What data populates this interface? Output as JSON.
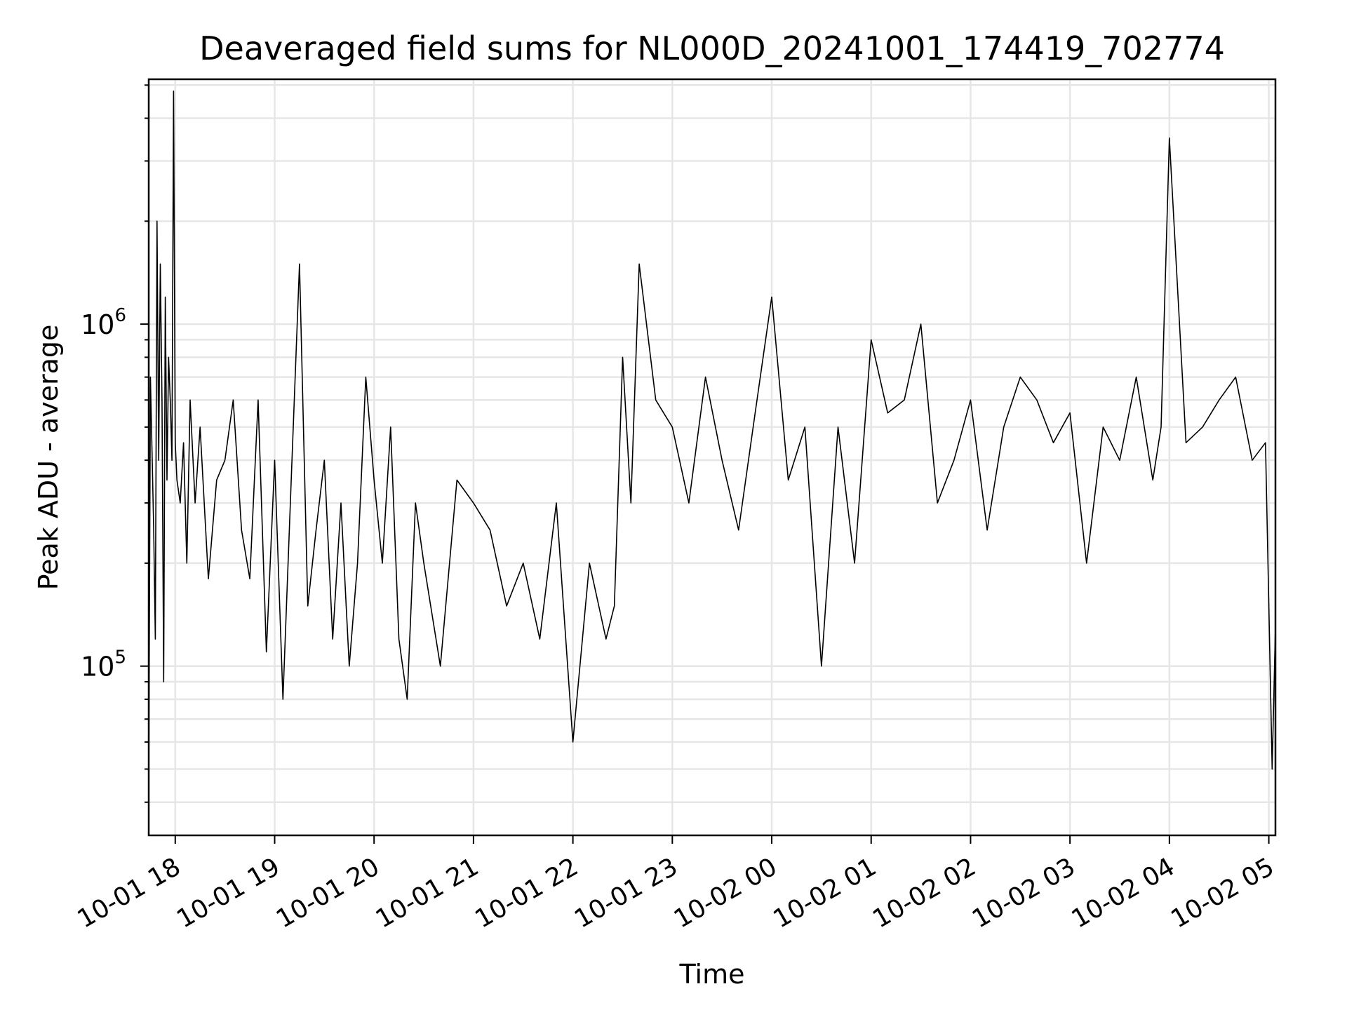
{
  "chart_data": {
    "type": "line",
    "title": "Deaveraged field sums for NL000D_20241001_174419_702774",
    "xlabel": "Time",
    "ylabel": "Peak ADU - average",
    "yscale": "log",
    "ylim": [
      32000,
      5200000
    ],
    "xlim": [
      "2024-10-01 17:44",
      "2024-10-02 05:04"
    ],
    "x_tick_labels": [
      "10-01 18",
      "10-01 19",
      "10-01 20",
      "10-01 21",
      "10-01 22",
      "10-01 23",
      "10-02 00",
      "10-02 01",
      "10-02 02",
      "10-02 03",
      "10-02 04",
      "10-02 05"
    ],
    "y_tick_labels": [
      {
        "base": "10",
        "exp": "6"
      },
      {
        "base": "10",
        "exp": "5"
      }
    ],
    "grid": true,
    "series_color": "#000000",
    "grid_color": "#e6e6e6",
    "series": [
      {
        "x": [
          "2024-10-01 17:44",
          "2024-10-01 17:45",
          "2024-10-01 17:47",
          "2024-10-01 17:48",
          "2024-10-01 17:49",
          "2024-10-01 17:50",
          "2024-10-01 17:51",
          "2024-10-01 17:52",
          "2024-10-01 17:53",
          "2024-10-01 17:54",
          "2024-10-01 17:55",
          "2024-10-01 17:56",
          "2024-10-01 17:57",
          "2024-10-01 17:58",
          "2024-10-01 17:59",
          "2024-10-01 18:00",
          "2024-10-01 18:01",
          "2024-10-01 18:03",
          "2024-10-01 18:05",
          "2024-10-01 18:07",
          "2024-10-01 18:09",
          "2024-10-01 18:12",
          "2024-10-01 18:15",
          "2024-10-01 18:20",
          "2024-10-01 18:25",
          "2024-10-01 18:30",
          "2024-10-01 18:35",
          "2024-10-01 18:40",
          "2024-10-01 18:45",
          "2024-10-01 18:50",
          "2024-10-01 18:55",
          "2024-10-01 19:00",
          "2024-10-01 19:05",
          "2024-10-01 19:10",
          "2024-10-01 19:15",
          "2024-10-01 19:20",
          "2024-10-01 19:25",
          "2024-10-01 19:30",
          "2024-10-01 19:35",
          "2024-10-01 19:40",
          "2024-10-01 19:45",
          "2024-10-01 19:50",
          "2024-10-01 19:55",
          "2024-10-01 20:00",
          "2024-10-01 20:05",
          "2024-10-01 20:10",
          "2024-10-01 20:15",
          "2024-10-01 20:20",
          "2024-10-01 20:25",
          "2024-10-01 20:30",
          "2024-10-01 20:40",
          "2024-10-01 20:50",
          "2024-10-01 21:00",
          "2024-10-01 21:10",
          "2024-10-01 21:20",
          "2024-10-01 21:30",
          "2024-10-01 21:40",
          "2024-10-01 21:50",
          "2024-10-01 22:00",
          "2024-10-01 22:10",
          "2024-10-01 22:20",
          "2024-10-01 22:25",
          "2024-10-01 22:30",
          "2024-10-01 22:35",
          "2024-10-01 22:40",
          "2024-10-01 22:50",
          "2024-10-01 23:00",
          "2024-10-01 23:10",
          "2024-10-01 23:20",
          "2024-10-01 23:30",
          "2024-10-01 23:40",
          "2024-10-01 23:50",
          "2024-10-02 00:00",
          "2024-10-02 00:10",
          "2024-10-02 00:20",
          "2024-10-02 00:30",
          "2024-10-02 00:40",
          "2024-10-02 00:50",
          "2024-10-02 01:00",
          "2024-10-02 01:10",
          "2024-10-02 01:20",
          "2024-10-02 01:30",
          "2024-10-02 01:40",
          "2024-10-02 01:50",
          "2024-10-02 02:00",
          "2024-10-02 02:10",
          "2024-10-02 02:20",
          "2024-10-02 02:30",
          "2024-10-02 02:40",
          "2024-10-02 02:50",
          "2024-10-02 03:00",
          "2024-10-02 03:10",
          "2024-10-02 03:20",
          "2024-10-02 03:30",
          "2024-10-02 03:40",
          "2024-10-02 03:50",
          "2024-10-02 03:55",
          "2024-10-02 04:00",
          "2024-10-02 04:10",
          "2024-10-02 04:20",
          "2024-10-02 04:30",
          "2024-10-02 04:40",
          "2024-10-02 04:50",
          "2024-10-02 04:58",
          "2024-10-02 05:00",
          "2024-10-02 05:02",
          "2024-10-02 05:04"
        ],
        "y": [
          45000,
          700000,
          250000,
          120000,
          2000000,
          400000,
          1500000,
          600000,
          90000,
          1200000,
          350000,
          800000,
          600000,
          400000,
          4800000,
          450000,
          350000,
          300000,
          450000,
          200000,
          600000,
          300000,
          500000,
          180000,
          350000,
          400000,
          600000,
          250000,
          180000,
          600000,
          110000,
          400000,
          80000,
          350000,
          1500000,
          150000,
          250000,
          400000,
          120000,
          300000,
          100000,
          200000,
          700000,
          350000,
          200000,
          500000,
          120000,
          80000,
          300000,
          200000,
          100000,
          350000,
          300000,
          250000,
          150000,
          200000,
          120000,
          300000,
          60000,
          200000,
          120000,
          150000,
          800000,
          300000,
          1500000,
          600000,
          500000,
          300000,
          700000,
          400000,
          250000,
          550000,
          1200000,
          350000,
          500000,
          100000,
          500000,
          200000,
          900000,
          550000,
          600000,
          1000000,
          300000,
          400000,
          600000,
          250000,
          500000,
          700000,
          600000,
          450000,
          550000,
          200000,
          500000,
          400000,
          700000,
          350000,
          500000,
          3500000,
          450000,
          500000,
          600000,
          700000,
          400000,
          450000,
          150000,
          50000,
          130000
        ]
      }
    ]
  }
}
